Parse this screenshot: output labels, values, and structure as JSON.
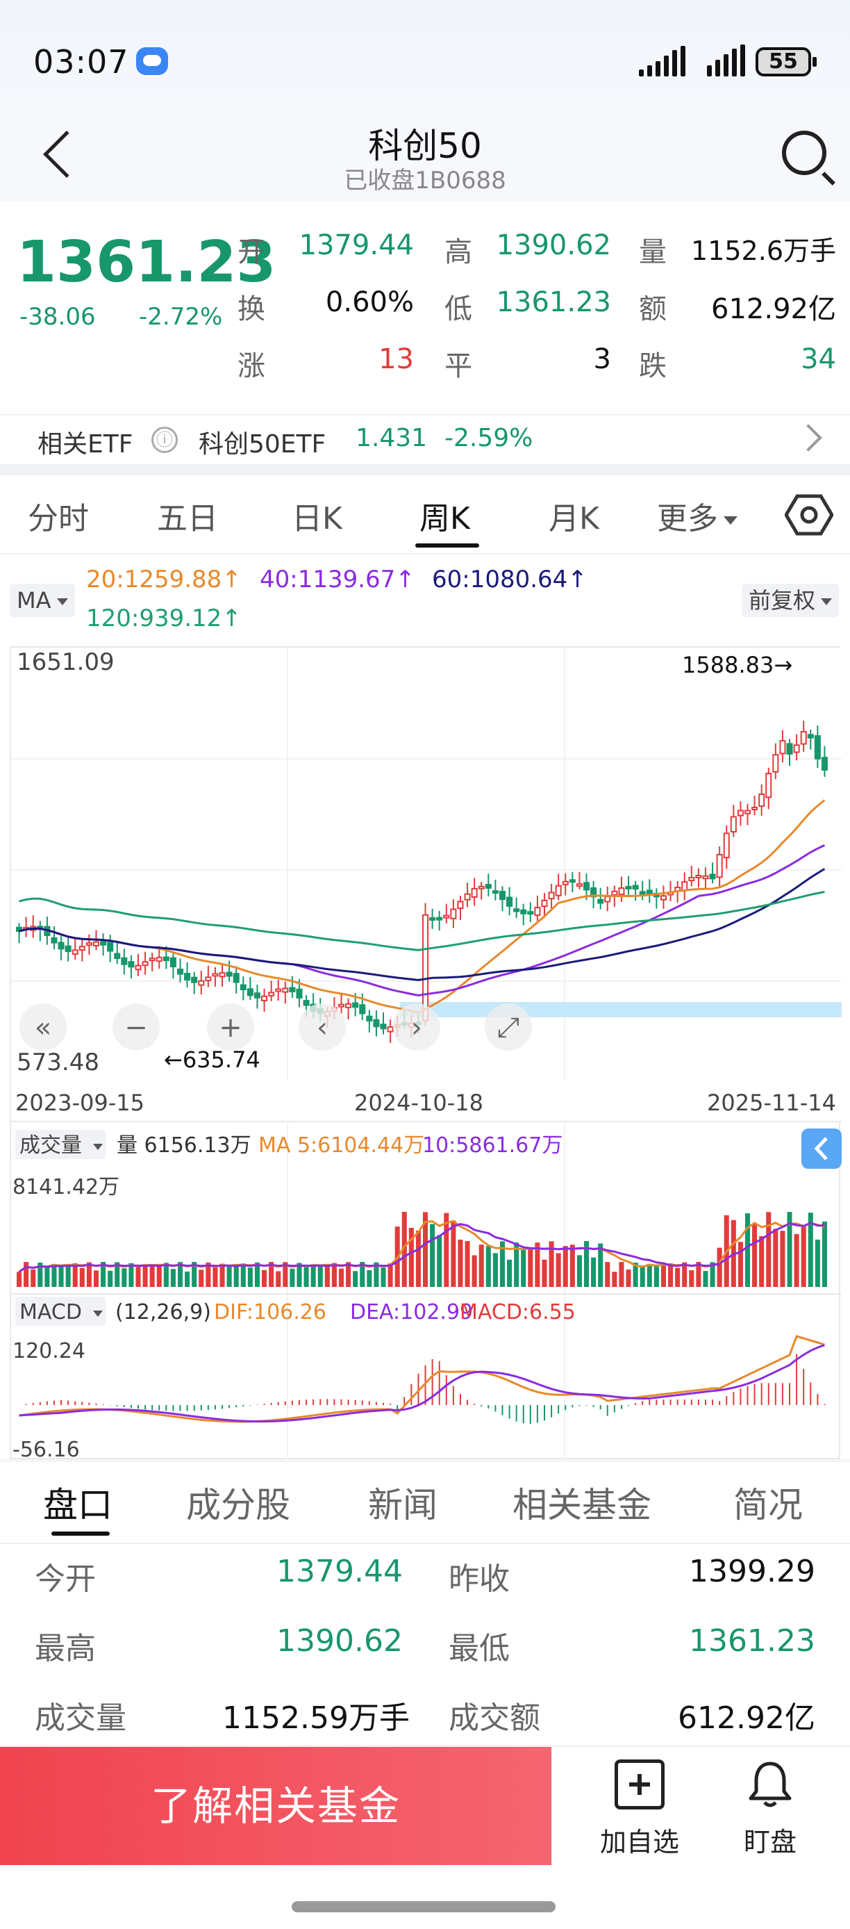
{
  "status_bar": {
    "time": "03:07",
    "battery": "55"
  },
  "header": {
    "title": "科创50",
    "subtitle": "已收盘1B0688"
  },
  "quote": {
    "price": "1361.23",
    "change": "-38.06",
    "change_pct": "-2.72%",
    "open_label": "开",
    "open": "1379.44",
    "high_label": "高",
    "high": "1390.62",
    "volume_label": "量",
    "volume": "1152.6万手",
    "turnover_label": "换",
    "turnover": "0.60%",
    "low_label": "低",
    "low": "1361.23",
    "amount_label": "额",
    "amount": "612.92亿",
    "up_label": "涨",
    "up": "13",
    "flat_label": "平",
    "flat": "3",
    "down_label": "跌",
    "down": "34"
  },
  "etf": {
    "label": "相关ETF",
    "info_icon": "ⓘ",
    "name": "科创50ETF",
    "value": "1.431",
    "pct": "-2.59%"
  },
  "chart_tabs": [
    "分时",
    "五日",
    "日K",
    "周K",
    "月K",
    "更多"
  ],
  "active_chart_tab": "周K",
  "indicators": {
    "ma_chip": "MA",
    "ma20": "20:1259.88↑",
    "ma40": "40:1139.67↑",
    "ma60": "60:1080.64↑",
    "ma120": "120:939.12↑",
    "adjust_chip": "前复权",
    "vol_chip": "成交量",
    "vol_text": "量 6156.13万",
    "vol_ma5": "MA 5:6104.44万",
    "vol_ma10": "10:5861.67万",
    "macd_chip": "MACD",
    "macd_params": "(12,26,9)",
    "dif": "DIF:106.26",
    "dea": "DEA:102.99",
    "macd": "MACD:6.55"
  },
  "colors": {
    "up": "#e23b3b",
    "down": "#17976a",
    "ma20": "#e8892b",
    "ma40": "#8a2be2",
    "ma60": "#1a1a7a",
    "ma120": "#1f9e6e"
  },
  "chart_data": {
    "type": "candlestick",
    "title": "科创50 周K",
    "y_max_label": "1651.09",
    "y_min_label": "573.48",
    "high_marker": "1588.83→",
    "low_marker": "←635.74",
    "x_ticks": [
      "2023-09-15",
      "2024-10-18",
      "2025-11-14"
    ],
    "ylim": [
      573.48,
      1651.09
    ],
    "volume_max_label": "8141.42万",
    "macd_max_label": "120.24",
    "macd_min_label": "-56.16",
    "zoom_controls": [
      "«",
      "−",
      "+",
      "‹",
      "›",
      "⤢"
    ]
  },
  "bottom_tabs": [
    "盘口",
    "成分股",
    "新闻",
    "相关基金",
    "简况"
  ],
  "stats": {
    "open_label": "今开",
    "open": "1379.44",
    "prev_close_label": "昨收",
    "prev_close": "1399.29",
    "high_label": "最高",
    "high": "1390.62",
    "low_label": "最低",
    "low": "1361.23",
    "volume_label": "成交量",
    "volume": "1152.59万手",
    "amount_label": "成交额",
    "amount": "612.92亿"
  },
  "actions": {
    "fund_button": "了解相关基金",
    "add_watch": "加自选",
    "alert": "盯盘"
  }
}
